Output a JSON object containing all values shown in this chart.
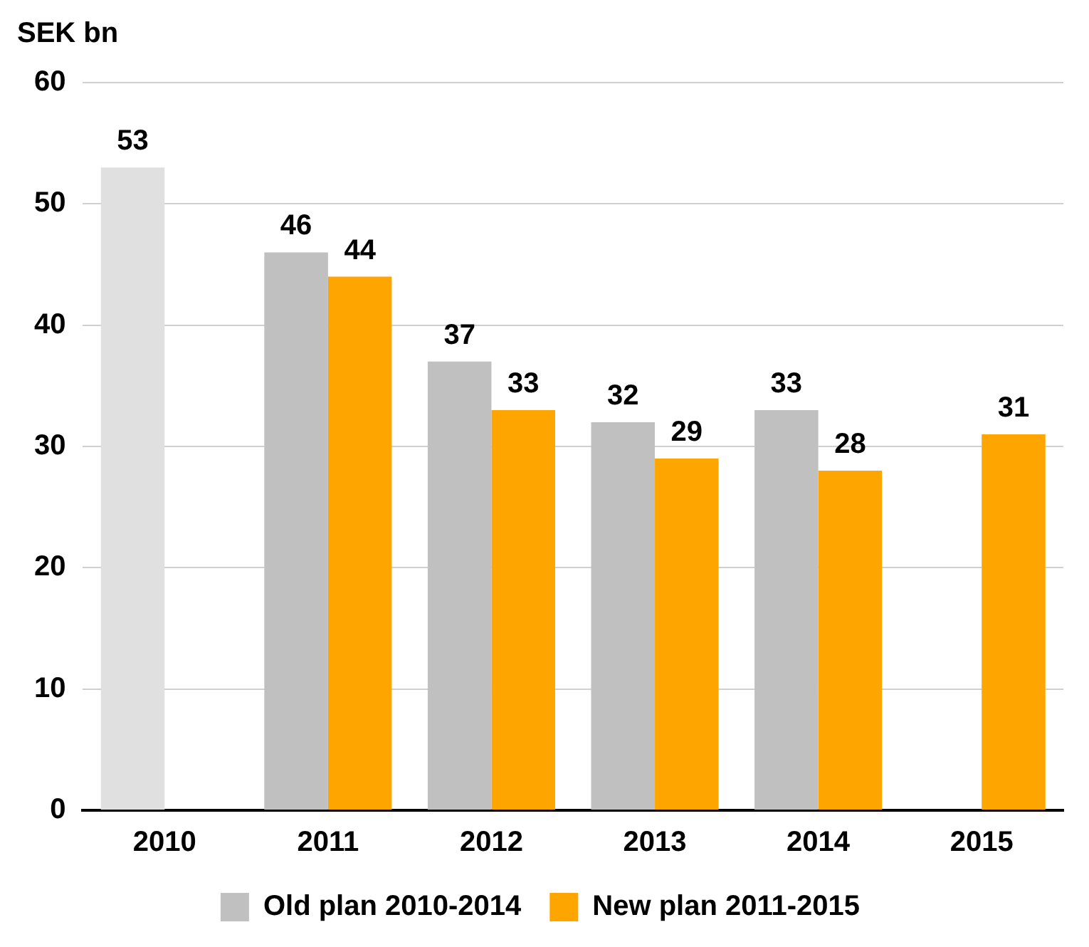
{
  "chart_data": {
    "type": "bar",
    "ylabel": "SEK bn",
    "categories": [
      "2010",
      "2011",
      "2012",
      "2013",
      "2014",
      "2015"
    ],
    "series": [
      {
        "name": "Old plan 2010-2014",
        "color": "#c0c0c0",
        "colors": [
          "#e0e0e0",
          "#c0c0c0",
          "#c0c0c0",
          "#c0c0c0",
          "#c0c0c0",
          "#c0c0c0"
        ],
        "values": [
          53,
          46,
          37,
          32,
          33,
          null
        ]
      },
      {
        "name": "New plan 2011-2015",
        "color": "#ffa500",
        "values": [
          null,
          44,
          33,
          29,
          28,
          31
        ]
      }
    ],
    "ylim": [
      0,
      60
    ],
    "yticks": [
      0,
      10,
      20,
      30,
      40,
      50,
      60
    ],
    "grid": "y",
    "legend": "bottom",
    "data_labels": true
  }
}
